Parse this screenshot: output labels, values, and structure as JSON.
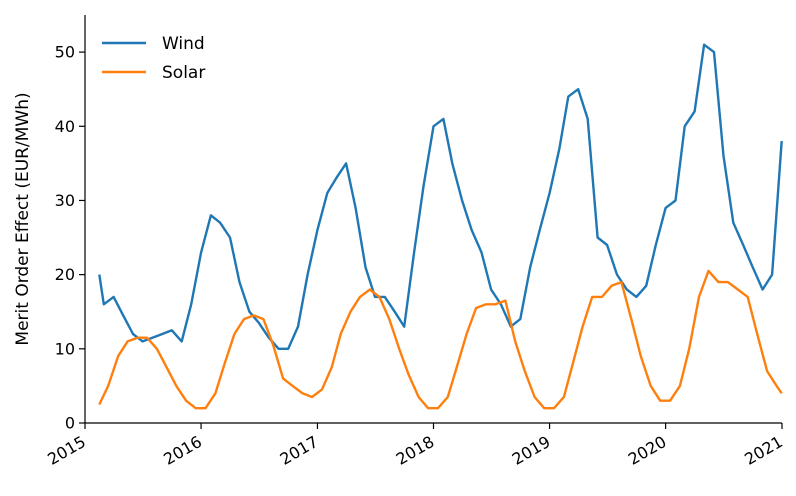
{
  "chart_data": {
    "type": "line",
    "title": "",
    "xlabel": "",
    "ylabel": "Merit Order Effect (EUR/MWh)",
    "xlim": [
      "2015-01-01",
      "2021-01-01"
    ],
    "ylim": [
      0,
      55
    ],
    "x_ticks": [
      "2015",
      "2016",
      "2017",
      "2018",
      "2019",
      "2020",
      "2021"
    ],
    "y_ticks": [
      0,
      10,
      20,
      30,
      40,
      50
    ],
    "grid": false,
    "legend": {
      "placement": "top-left"
    },
    "series": [
      {
        "name": "Wind",
        "color": "#1f77b4",
        "x": [
          "2015-02-15",
          "2015-03-01",
          "2015-04-01",
          "2015-05-01",
          "2015-06-01",
          "2015-07-01",
          "2015-08-01",
          "2015-09-01",
          "2015-10-01",
          "2015-11-01",
          "2015-12-01",
          "2016-01-01",
          "2016-02-01",
          "2016-03-01",
          "2016-04-01",
          "2016-05-01",
          "2016-06-01",
          "2016-07-01",
          "2016-08-01",
          "2016-09-01",
          "2016-10-01",
          "2016-11-01",
          "2016-12-01",
          "2017-01-01",
          "2017-02-01",
          "2017-03-01",
          "2017-04-01",
          "2017-05-01",
          "2017-06-01",
          "2017-07-01",
          "2017-08-01",
          "2017-09-01",
          "2017-10-01",
          "2017-11-01",
          "2017-12-01",
          "2018-01-01",
          "2018-02-01",
          "2018-03-01",
          "2018-04-01",
          "2018-05-01",
          "2018-06-01",
          "2018-07-01",
          "2018-08-01",
          "2018-09-01",
          "2018-10-01",
          "2018-11-01",
          "2018-12-01",
          "2019-01-01",
          "2019-02-01",
          "2019-03-01",
          "2019-04-01",
          "2019-05-01",
          "2019-06-01",
          "2019-07-01",
          "2019-08-01",
          "2019-09-01",
          "2019-10-01",
          "2019-11-01",
          "2019-12-01",
          "2020-01-01",
          "2020-02-01",
          "2020-03-01",
          "2020-04-01",
          "2020-05-01",
          "2020-06-01",
          "2020-07-01",
          "2020-08-01",
          "2020-09-01",
          "2020-10-01",
          "2020-11-01",
          "2020-12-01",
          "2020-12-31"
        ],
        "y": [
          20,
          16,
          17,
          14.5,
          12,
          11,
          11.5,
          12,
          12.5,
          11,
          16,
          23,
          28,
          27,
          25,
          19,
          15,
          13.5,
          11.5,
          10,
          10,
          13,
          20,
          26,
          31,
          33,
          35,
          29,
          21,
          17,
          17,
          15,
          13,
          23,
          32,
          40,
          41,
          35,
          30,
          26,
          23,
          18,
          16,
          13,
          14,
          21,
          26,
          31,
          37,
          44,
          45,
          41,
          25,
          24,
          20,
          18,
          17,
          18.5,
          24,
          29,
          30,
          40,
          42,
          51,
          50,
          36,
          27,
          24,
          21,
          18,
          20,
          38
        ]
      },
      {
        "name": "Solar",
        "color": "#ff7f0e",
        "x": [
          "2015-02-15",
          "2015-03-15",
          "2015-04-15",
          "2015-05-15",
          "2015-06-15",
          "2015-07-15",
          "2015-08-15",
          "2015-09-15",
          "2015-10-15",
          "2015-11-15",
          "2015-12-15",
          "2016-01-15",
          "2016-02-15",
          "2016-03-15",
          "2016-04-15",
          "2016-05-15",
          "2016-06-15",
          "2016-07-15",
          "2016-08-15",
          "2016-09-15",
          "2016-10-15",
          "2016-11-15",
          "2016-12-15",
          "2017-01-15",
          "2017-02-15",
          "2017-03-15",
          "2017-04-15",
          "2017-05-15",
          "2017-06-15",
          "2017-07-15",
          "2017-08-15",
          "2017-09-15",
          "2017-10-15",
          "2017-11-15",
          "2017-12-15",
          "2018-01-15",
          "2018-02-15",
          "2018-03-15",
          "2018-04-15",
          "2018-05-15",
          "2018-06-15",
          "2018-07-15",
          "2018-08-15",
          "2018-09-15",
          "2018-10-15",
          "2018-11-15",
          "2018-12-15",
          "2019-01-15",
          "2019-02-15",
          "2019-03-15",
          "2019-04-15",
          "2019-05-15",
          "2019-06-15",
          "2019-07-15",
          "2019-08-15",
          "2019-09-15",
          "2019-10-15",
          "2019-11-15",
          "2019-12-15",
          "2020-01-15",
          "2020-02-15",
          "2020-03-15",
          "2020-04-15",
          "2020-05-15",
          "2020-06-15",
          "2020-07-15",
          "2020-08-15",
          "2020-09-15",
          "2020-10-15",
          "2020-11-15",
          "2020-12-15",
          "2020-12-31"
        ],
        "y": [
          2.5,
          5,
          9,
          11,
          11.5,
          11.5,
          10,
          7.5,
          5,
          3,
          2,
          2,
          4,
          8,
          12,
          14,
          14.5,
          14,
          10.5,
          6,
          5,
          4,
          3.5,
          4.5,
          7.5,
          12,
          15,
          17,
          18,
          17,
          14,
          10,
          6.5,
          3.5,
          2,
          2,
          3.5,
          7.5,
          12,
          15.5,
          16,
          16,
          16.5,
          11,
          7,
          3.5,
          2,
          2,
          3.5,
          8,
          13,
          17,
          17,
          18.5,
          19,
          14,
          9,
          5,
          3,
          3,
          5,
          10,
          17,
          20.5,
          19,
          19,
          18,
          17,
          12,
          7,
          5,
          4
        ]
      }
    ]
  }
}
